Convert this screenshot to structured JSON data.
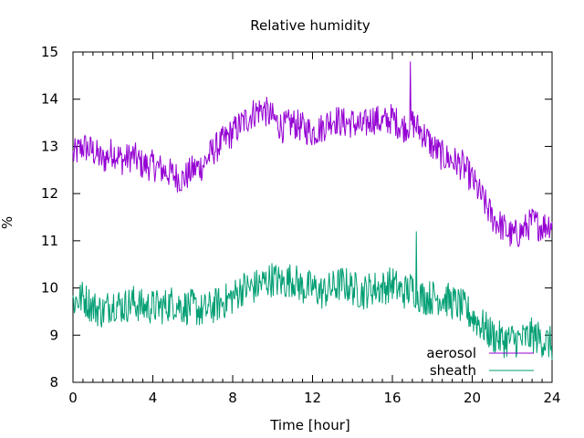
{
  "chart_data": {
    "type": "line",
    "title": "Relative humidity",
    "xlabel": "Time [hour]",
    "ylabel": "%",
    "xlim": [
      0,
      24
    ],
    "ylim": [
      8,
      15
    ],
    "x_ticks": [
      "0",
      "4",
      "8",
      "12",
      "16",
      "20",
      "24"
    ],
    "y_ticks": [
      "8",
      "9",
      "10",
      "11",
      "12",
      "13",
      "14",
      "15"
    ],
    "legend_position": "bottom-right",
    "grid": false,
    "series": [
      {
        "name": "aerosol",
        "color": "#9400d3",
        "x": [
          0,
          0.5,
          1,
          1.5,
          2,
          2.5,
          3,
          3.5,
          4,
          4.5,
          5,
          5.5,
          6,
          6.5,
          7,
          7.5,
          8,
          8.5,
          9,
          9.5,
          10,
          10.5,
          11,
          11.5,
          12,
          12.5,
          13,
          13.5,
          14,
          14.5,
          15,
          15.5,
          16,
          16.5,
          17,
          17.5,
          18,
          18.5,
          19,
          19.5,
          20,
          20.5,
          21,
          21.5,
          22,
          22.5,
          23,
          23.5,
          24
        ],
        "values": [
          12.8,
          13.0,
          12.9,
          12.7,
          12.9,
          12.7,
          12.8,
          12.6,
          12.6,
          12.5,
          12.4,
          12.3,
          12.5,
          12.6,
          12.9,
          13.1,
          13.3,
          13.5,
          13.7,
          13.8,
          13.6,
          13.4,
          13.5,
          13.4,
          13.3,
          13.4,
          13.6,
          13.5,
          13.5,
          13.4,
          13.6,
          13.5,
          13.6,
          13.4,
          13.5,
          13.3,
          13.0,
          12.8,
          12.7,
          12.6,
          12.3,
          11.9,
          11.5,
          11.3,
          11.1,
          11.2,
          11.4,
          11.3,
          11.4
        ],
        "peak": {
          "x": 16.9,
          "value": 14.8
        }
      },
      {
        "name": "sheath",
        "color": "#009e73",
        "x": [
          0,
          0.5,
          1,
          1.5,
          2,
          2.5,
          3,
          3.5,
          4,
          4.5,
          5,
          5.5,
          6,
          6.5,
          7,
          7.5,
          8,
          8.5,
          9,
          9.5,
          10,
          10.5,
          11,
          11.5,
          12,
          12.5,
          13,
          13.5,
          14,
          14.5,
          15,
          15.5,
          16,
          16.5,
          17,
          17.5,
          18,
          18.5,
          19,
          19.5,
          20,
          20.5,
          21,
          21.5,
          22,
          22.5,
          23,
          23.5,
          24
        ],
        "values": [
          9.7,
          9.8,
          9.6,
          9.5,
          9.7,
          9.6,
          9.7,
          9.6,
          9.6,
          9.6,
          9.7,
          9.6,
          9.6,
          9.5,
          9.6,
          9.7,
          9.8,
          10.0,
          10.0,
          10.1,
          10.2,
          10.1,
          10.2,
          10.0,
          10.0,
          9.9,
          10.0,
          10.1,
          10.0,
          9.9,
          10.0,
          10.0,
          10.1,
          9.9,
          10.0,
          9.8,
          9.8,
          9.8,
          9.7,
          9.6,
          9.4,
          9.2,
          9.0,
          8.9,
          8.9,
          8.9,
          9.0,
          8.9,
          8.8
        ],
        "peak": {
          "x": 17.2,
          "value": 11.2
        }
      }
    ]
  }
}
